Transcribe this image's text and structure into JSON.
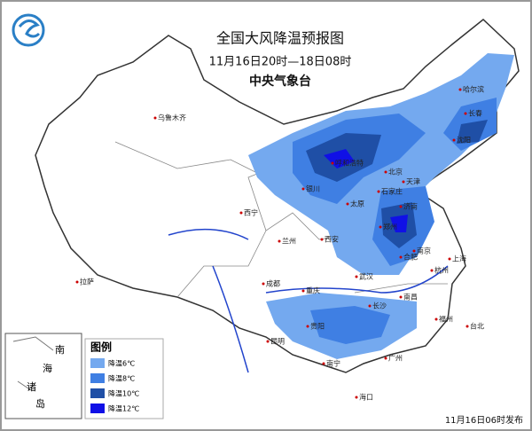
{
  "header": {
    "title": "全国大风降温预报图",
    "period": "11月16日20时—18日08时",
    "issuer": "中央气象台"
  },
  "legend": {
    "title": "图例",
    "items": [
      {
        "label": "降温6℃",
        "color": "#74a9ef"
      },
      {
        "label": "降温8℃",
        "color": "#3f7fe3"
      },
      {
        "label": "降温10℃",
        "color": "#1f4fa6"
      },
      {
        "label": "降温12℃",
        "color": "#1010e6"
      }
    ]
  },
  "inset": {
    "labels": [
      "南",
      "海",
      "诸",
      "岛"
    ]
  },
  "cities": [
    "乌鲁木齐",
    "拉萨",
    "西宁",
    "兰州",
    "银川",
    "呼和浩特",
    "哈尔滨",
    "长春",
    "沈阳",
    "北京",
    "天津",
    "石家庄",
    "太原",
    "济南",
    "郑州",
    "西安",
    "成都",
    "重庆",
    "武汉",
    "合肥",
    "南京",
    "上海",
    "杭州",
    "南昌",
    "长沙",
    "贵阳",
    "昆明",
    "南宁",
    "广州",
    "福州",
    "台北",
    "海口"
  ],
  "footer": "11月16日06时发布"
}
